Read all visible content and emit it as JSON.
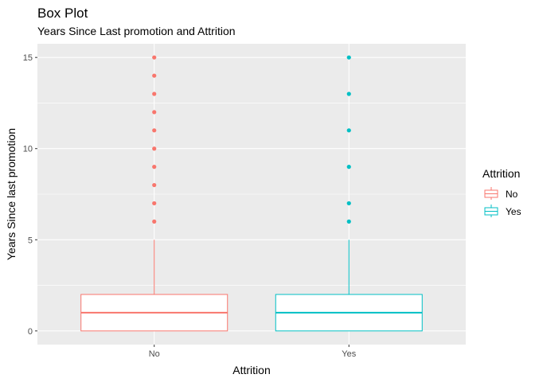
{
  "chart_data": {
    "type": "boxplot",
    "title": "Box Plot",
    "subtitle": "Years Since Last promotion and Attrition",
    "xlabel": "Attrition",
    "ylabel": "Years Since last promotion",
    "ylim": [
      -0.75,
      15.75
    ],
    "y_ticks": [
      0,
      5,
      10,
      15
    ],
    "grid": true,
    "legend": {
      "title": "Attrition",
      "position": "right",
      "entries": [
        "No",
        "Yes"
      ]
    },
    "categories": [
      "No",
      "Yes"
    ],
    "series": [
      {
        "name": "No",
        "color": "#F8766D",
        "min": 0,
        "q1": 0,
        "median": 1,
        "q3": 2,
        "max": 5,
        "outliers": [
          6,
          7,
          8,
          9,
          10,
          11,
          12,
          13,
          14,
          15
        ]
      },
      {
        "name": "Yes",
        "color": "#00BFC4",
        "min": 0,
        "q1": 0,
        "median": 1,
        "q3": 2,
        "max": 5,
        "outliers": [
          6,
          7,
          9,
          11,
          13,
          15
        ]
      }
    ]
  }
}
